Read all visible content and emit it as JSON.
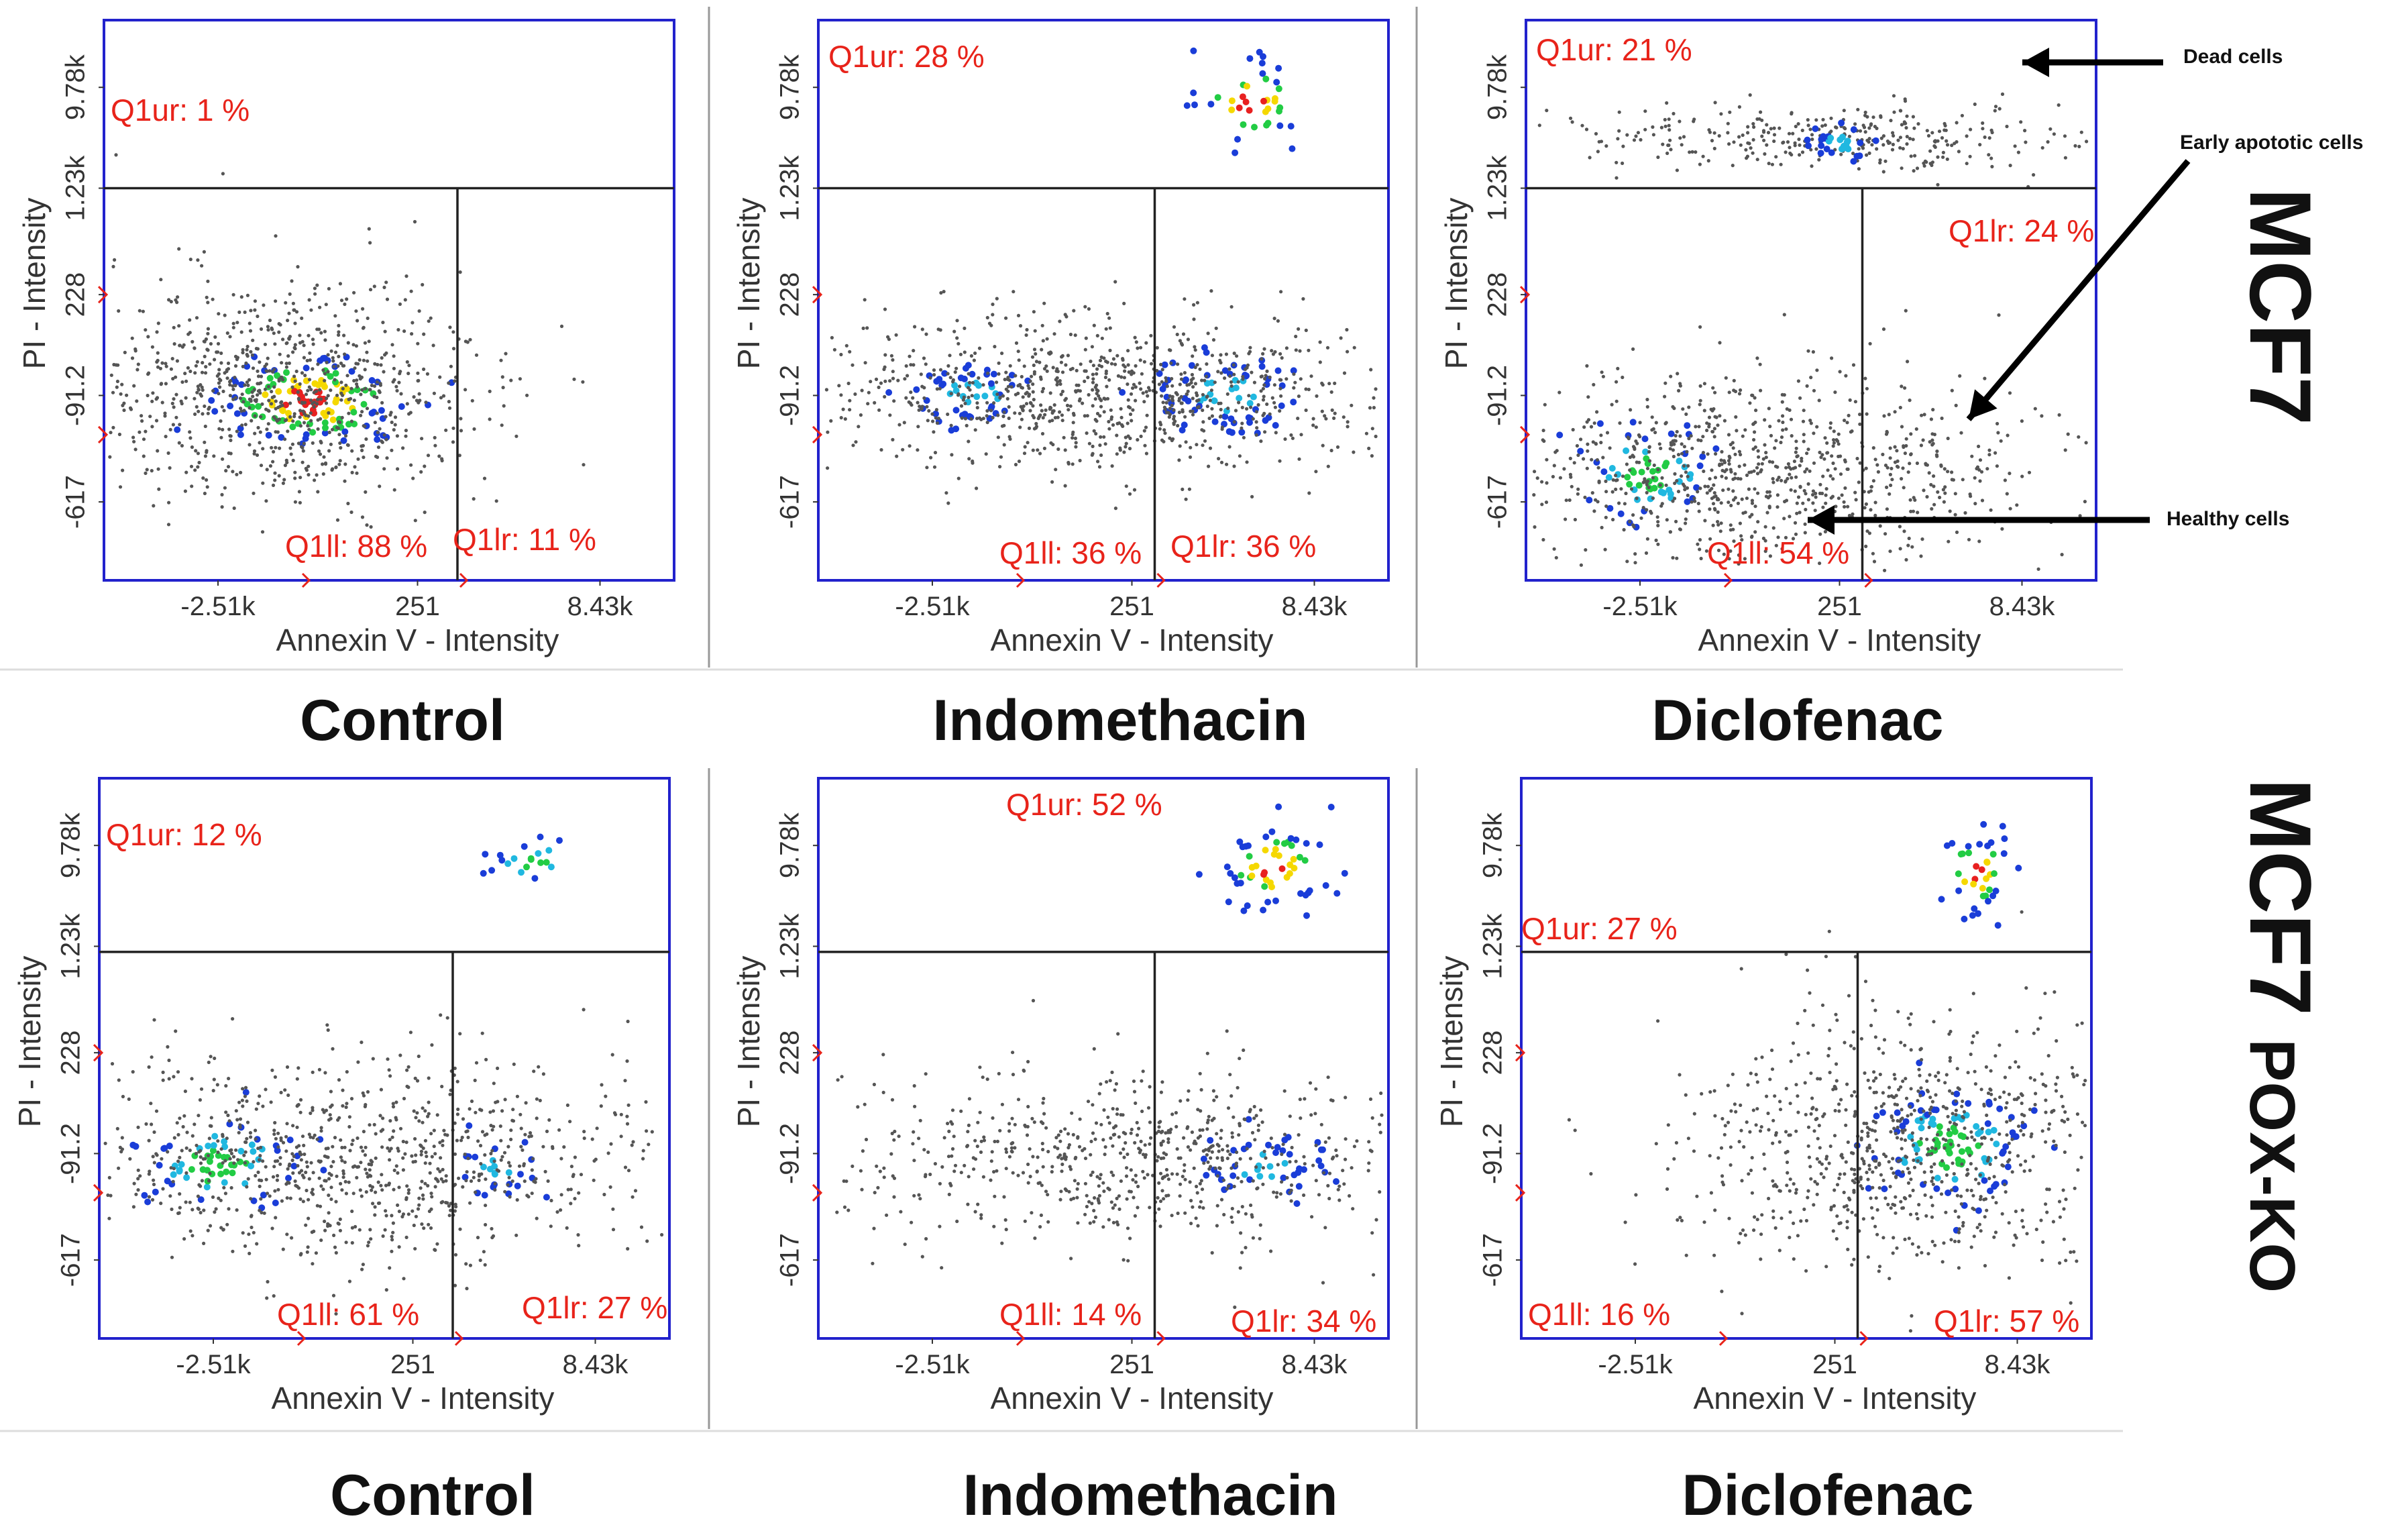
{
  "row_labels": [
    {
      "main": "MCF7",
      "suffix": ""
    },
    {
      "main": "MCF7",
      "suffix": "POX-KO"
    }
  ],
  "annotations": {
    "dead": "Dead cells",
    "early": "Early apototic cells",
    "healthy": "Healthy cells"
  },
  "colors": {
    "frame": "#2222cc",
    "gate": "#222222",
    "quadrant_text": "#e8231a",
    "dots": "#555555"
  },
  "chart_data": [
    {
      "type": "scatter",
      "title": "Control",
      "xlabel": "Annexin V - Intensity",
      "ylabel": "PI - Intensity",
      "x_ticks": [
        "-2.51k",
        "251",
        "8.43k"
      ],
      "y_ticks": [
        "-617",
        "-91.2",
        "228",
        "1.23k",
        "9.78k"
      ],
      "quadrants": {
        "ur": "Q1ur: 1 %",
        "ll": "Q1ll: 88 %",
        "lr": "Q1lr: 11 %"
      }
    },
    {
      "type": "scatter",
      "title": "Indomethacin",
      "xlabel": "Annexin V - Intensity",
      "ylabel": "PI - Intensity",
      "x_ticks": [
        "-2.51k",
        "251",
        "8.43k"
      ],
      "y_ticks": [
        "-617",
        "-91.2",
        "228",
        "1.23k",
        "9.78k"
      ],
      "quadrants": {
        "ur": "Q1ur: 28 %",
        "ll": "Q1ll: 36 %",
        "lr": "Q1lr: 36 %"
      }
    },
    {
      "type": "scatter",
      "title": "Diclofenac",
      "xlabel": "Annexin V - Intensity",
      "ylabel": "PI - Intensity",
      "x_ticks": [
        "-2.51k",
        "251",
        "8.43k"
      ],
      "y_ticks": [
        "-617",
        "-91.2",
        "228",
        "1.23k",
        "9.78k"
      ],
      "quadrants": {
        "ur": "Q1ur: 21 %",
        "ll": "Q1ll: 54 %",
        "lr": "Q1lr: 24 %"
      }
    },
    {
      "type": "scatter",
      "title": "Control",
      "xlabel": "Annexin V - Intensity",
      "ylabel": "PI - Intensity",
      "x_ticks": [
        "-2.51k",
        "251",
        "8.43k"
      ],
      "y_ticks": [
        "-617",
        "-91.2",
        "228",
        "1.23k",
        "9.78k"
      ],
      "quadrants": {
        "ur": "Q1ur: 12 %",
        "ll": "Q1ll: 61 %",
        "lr": "Q1lr: 27 %"
      }
    },
    {
      "type": "scatter",
      "title": "Indomethacin",
      "xlabel": "Annexin V - Intensity",
      "ylabel": "PI - Intensity",
      "x_ticks": [
        "-2.51k",
        "251",
        "8.43k"
      ],
      "y_ticks": [
        "-617",
        "-91.2",
        "228",
        "1.23k",
        "9.78k"
      ],
      "quadrants": {
        "ur": "Q1ur: 52 %",
        "ll": "Q1ll: 14 %",
        "lr": "Q1lr: 34 %"
      }
    },
    {
      "type": "scatter",
      "title": "Diclofenac",
      "xlabel": "Annexin V - Intensity",
      "ylabel": "PI - Intensity",
      "x_ticks": [
        "-2.51k",
        "251",
        "8.43k"
      ],
      "y_ticks": [
        "-617",
        "-91.2",
        "228",
        "1.23k",
        "9.78k"
      ],
      "quadrants": {
        "ur": "Q1ur: 27 %",
        "ll": "Q1ll: 16 %",
        "lr": "Q1lr: 57 %"
      }
    }
  ]
}
